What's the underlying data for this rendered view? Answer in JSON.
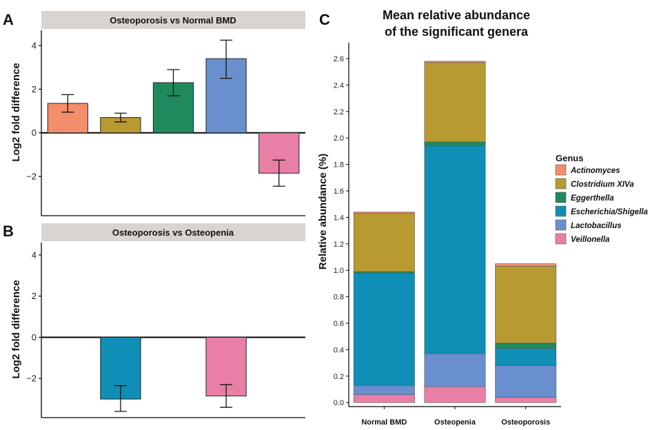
{
  "chart_data": [
    {
      "panel": "A",
      "type": "bar",
      "title": "Osteoporosis vs Normal BMD",
      "ylabel": "Log2 fold difference",
      "ylim": [
        -3.8,
        4.7
      ],
      "yticks": [
        -2,
        0,
        2,
        4
      ],
      "grid": false,
      "bars": [
        {
          "genus": "Actinomyces",
          "value": 1.35,
          "err_low": 0.95,
          "err_high": 1.75,
          "color": "#F28E6B"
        },
        {
          "genus": "Clostridium XIVa",
          "value": 0.7,
          "err_low": 0.5,
          "err_high": 0.9,
          "color": "#B89A33"
        },
        {
          "genus": "Eggerthella",
          "value": 2.3,
          "err_low": 1.7,
          "err_high": 2.9,
          "color": "#1E8A5E"
        },
        {
          "genus": "Lactobacillus",
          "value": 3.4,
          "err_low": 2.5,
          "err_high": 4.25,
          "color": "#6A8FCF"
        },
        {
          "genus": "Veillonella",
          "value": -1.85,
          "err_low": -2.45,
          "err_high": -1.25,
          "color": "#E97FA6"
        }
      ]
    },
    {
      "panel": "B",
      "type": "bar",
      "title": "Osteoporosis vs Osteopenia",
      "ylabel": "Log2 fold difference",
      "ylim": [
        -3.9,
        4.6
      ],
      "yticks": [
        -2,
        0,
        2,
        4
      ],
      "grid": false,
      "bars": [
        {
          "genus": "Escherichia/Shigella",
          "value": -3.0,
          "err_low": -3.6,
          "err_high": -2.35,
          "color": "#0F8FB5"
        },
        {
          "genus": "Veillonella",
          "value": -2.85,
          "err_low": -3.4,
          "err_high": -2.3,
          "color": "#E97FA6"
        }
      ]
    },
    {
      "panel": "C",
      "type": "bar",
      "stacked": true,
      "title_lines": [
        "Mean relative abundance",
        "of the significant genera"
      ],
      "ylabel": "Relative abundance (%)",
      "ylim": [
        -0.03,
        2.72
      ],
      "yticks": [
        "0.0",
        "0.2",
        "0.4",
        "0.6",
        "0.8",
        "1.0",
        "1.2",
        "1.4",
        "1.6",
        "1.8",
        "2.0",
        "2.2",
        "2.4",
        "2.6"
      ],
      "categories": [
        "Normal BMD",
        "Osteopenia",
        "Osteoporosis"
      ],
      "grid": false,
      "legend_position": "right",
      "legend_title": "Genus",
      "series": [
        {
          "name": "Veillonella",
          "values": [
            0.06,
            0.12,
            0.04
          ],
          "color": "#E97FA6"
        },
        {
          "name": "Lactobacillus",
          "values": [
            0.07,
            0.25,
            0.24
          ],
          "color": "#6A8FCF"
        },
        {
          "name": "Escherichia/Shigella",
          "values": [
            0.85,
            1.57,
            0.13
          ],
          "color": "#0F8FB5"
        },
        {
          "name": "Eggerthella",
          "values": [
            0.01,
            0.03,
            0.04
          ],
          "color": "#1E8A5E"
        },
        {
          "name": "Clostridium XIVa",
          "values": [
            0.44,
            0.6,
            0.58
          ],
          "color": "#B89A33"
        },
        {
          "name": "Actinomyces",
          "values": [
            0.01,
            0.01,
            0.02
          ],
          "color": "#F28E6B"
        }
      ],
      "legend_entries": [
        {
          "name": "Actinomyces",
          "color": "#F28E6B"
        },
        {
          "name": "Clostridium XIVa",
          "color": "#B89A33"
        },
        {
          "name": "Eggerthella",
          "color": "#1E8A5E"
        },
        {
          "name": "Escherichia/Shigella",
          "color": "#0F8FB5"
        },
        {
          "name": "Lactobacillus",
          "color": "#6A8FCF"
        },
        {
          "name": "Veillonella",
          "color": "#E97FA6"
        }
      ]
    }
  ]
}
